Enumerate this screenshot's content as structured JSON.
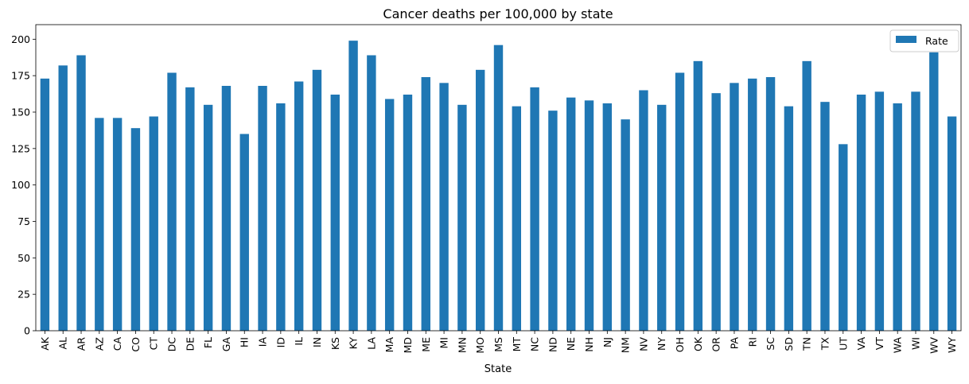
{
  "chart_data": {
    "type": "bar",
    "title": "Cancer deaths per 100,000 by state",
    "xlabel": "State",
    "ylabel": "",
    "ylim": [
      0,
      210
    ],
    "yticks": [
      0,
      25,
      50,
      75,
      100,
      125,
      150,
      175,
      200
    ],
    "grid": false,
    "legend_position": "top-right",
    "categories": [
      "AK",
      "AL",
      "AR",
      "AZ",
      "CA",
      "CO",
      "CT",
      "DC",
      "DE",
      "FL",
      "GA",
      "HI",
      "IA",
      "ID",
      "IL",
      "IN",
      "KS",
      "KY",
      "LA",
      "MA",
      "MD",
      "ME",
      "MI",
      "MN",
      "MO",
      "MS",
      "MT",
      "NC",
      "ND",
      "NE",
      "NH",
      "NJ",
      "NM",
      "NV",
      "NY",
      "OH",
      "OK",
      "OR",
      "PA",
      "RI",
      "SC",
      "SD",
      "TN",
      "TX",
      "UT",
      "VA",
      "VT",
      "WA",
      "WI",
      "WV",
      "WY"
    ],
    "series": [
      {
        "name": "Rate",
        "color": "#1f77b4",
        "values": [
          173,
          182,
          189,
          146,
          146,
          139,
          147,
          177,
          167,
          155,
          168,
          135,
          168,
          156,
          171,
          179,
          162,
          199,
          189,
          159,
          162,
          174,
          170,
          155,
          179,
          196,
          154,
          167,
          151,
          160,
          158,
          156,
          145,
          165,
          155,
          177,
          185,
          163,
          170,
          173,
          174,
          154,
          185,
          157,
          128,
          162,
          164,
          156,
          164,
          191,
          147
        ]
      }
    ]
  }
}
